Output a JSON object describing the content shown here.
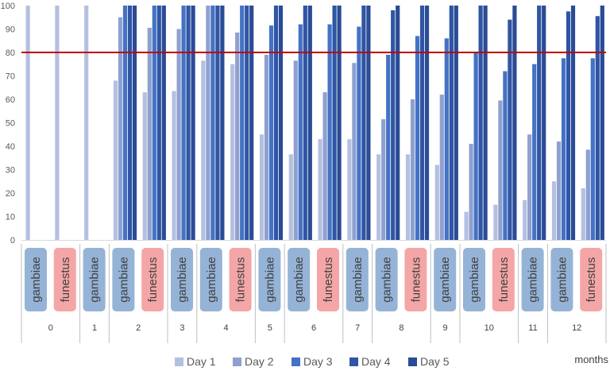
{
  "chart_data": {
    "type": "bar",
    "xlabel": "months",
    "ylim": [
      0,
      100
    ],
    "yticks": [
      0,
      10,
      20,
      30,
      40,
      50,
      60,
      70,
      80,
      90,
      100
    ],
    "threshold": {
      "value": 80,
      "color": "#c00000"
    },
    "series_names": [
      "Day 1",
      "Day 2",
      "Day 3",
      "Day 4",
      "Day 5"
    ],
    "series_colors": [
      "#b4c0e0",
      "#8fa0d0",
      "#4472c4",
      "#2f55a4",
      "#2a4b96"
    ],
    "species_colors": {
      "gambiae": "#95b3d7",
      "funestus": "#f4a6a6"
    },
    "groups": [
      {
        "month": "0",
        "species": [
          "gambiae",
          "funestus"
        ]
      },
      {
        "month": "1",
        "species": [
          "gambiae"
        ]
      },
      {
        "month": "2",
        "species": [
          "gambiae",
          "funestus"
        ]
      },
      {
        "month": "3",
        "species": [
          "gambiae"
        ]
      },
      {
        "month": "4",
        "species": [
          "gambiae",
          "funestus"
        ]
      },
      {
        "month": "5",
        "species": [
          "gambiae"
        ]
      },
      {
        "month": "6",
        "species": [
          "gambiae",
          "funestus"
        ]
      },
      {
        "month": "7",
        "species": [
          "gambiae"
        ]
      },
      {
        "month": "8",
        "species": [
          "gambiae",
          "funestus"
        ]
      },
      {
        "month": "9",
        "species": [
          "gambiae"
        ]
      },
      {
        "month": "10",
        "species": [
          "gambiae",
          "funestus"
        ]
      },
      {
        "month": "11",
        "species": [
          "gambiae"
        ]
      },
      {
        "month": "12",
        "species": [
          "gambiae",
          "funestus"
        ]
      }
    ],
    "bars": [
      {
        "month": "0",
        "species": "gambiae",
        "values": [
          100,
          null,
          null,
          null,
          null
        ]
      },
      {
        "month": "0",
        "species": "funestus",
        "values": [
          100,
          null,
          null,
          null,
          null
        ]
      },
      {
        "month": "1",
        "species": "gambiae",
        "values": [
          100,
          null,
          null,
          null,
          null
        ]
      },
      {
        "month": "2",
        "species": "gambiae",
        "values": [
          68,
          95,
          100,
          100,
          100
        ]
      },
      {
        "month": "2",
        "species": "funestus",
        "values": [
          63,
          90.5,
          100,
          100,
          100
        ]
      },
      {
        "month": "3",
        "species": "gambiae",
        "values": [
          63.5,
          90,
          100,
          100,
          100
        ]
      },
      {
        "month": "4",
        "species": "gambiae",
        "values": [
          76.5,
          100,
          100,
          100,
          100
        ]
      },
      {
        "month": "4",
        "species": "funestus",
        "values": [
          75,
          88.5,
          100,
          100,
          100
        ]
      },
      {
        "month": "5",
        "species": "gambiae",
        "values": [
          45,
          79,
          91.5,
          100,
          100
        ]
      },
      {
        "month": "6",
        "species": "gambiae",
        "values": [
          36.5,
          76.5,
          92,
          100,
          100
        ]
      },
      {
        "month": "6",
        "species": "funestus",
        "values": [
          43,
          63,
          92,
          100,
          100
        ]
      },
      {
        "month": "7",
        "species": "gambiae",
        "values": [
          43,
          75.5,
          91,
          100,
          100
        ]
      },
      {
        "month": "8",
        "species": "gambiae",
        "values": [
          36.5,
          51.5,
          79,
          98,
          100
        ]
      },
      {
        "month": "8",
        "species": "funestus",
        "values": [
          36.5,
          60,
          87,
          100,
          100
        ]
      },
      {
        "month": "9",
        "species": "gambiae",
        "values": [
          32,
          62,
          86,
          100,
          100
        ]
      },
      {
        "month": "10",
        "species": "gambiae",
        "values": [
          12,
          41,
          80,
          100,
          100
        ]
      },
      {
        "month": "10",
        "species": "funestus",
        "values": [
          15,
          59.5,
          72,
          94,
          100
        ]
      },
      {
        "month": "11",
        "species": "gambiae",
        "values": [
          17,
          45,
          75,
          100,
          100
        ]
      },
      {
        "month": "12",
        "species": "gambiae",
        "values": [
          25,
          42,
          77.5,
          97.5,
          100
        ]
      },
      {
        "month": "12",
        "species": "funestus",
        "values": [
          22,
          38.5,
          77.5,
          95.5,
          100
        ]
      }
    ]
  }
}
